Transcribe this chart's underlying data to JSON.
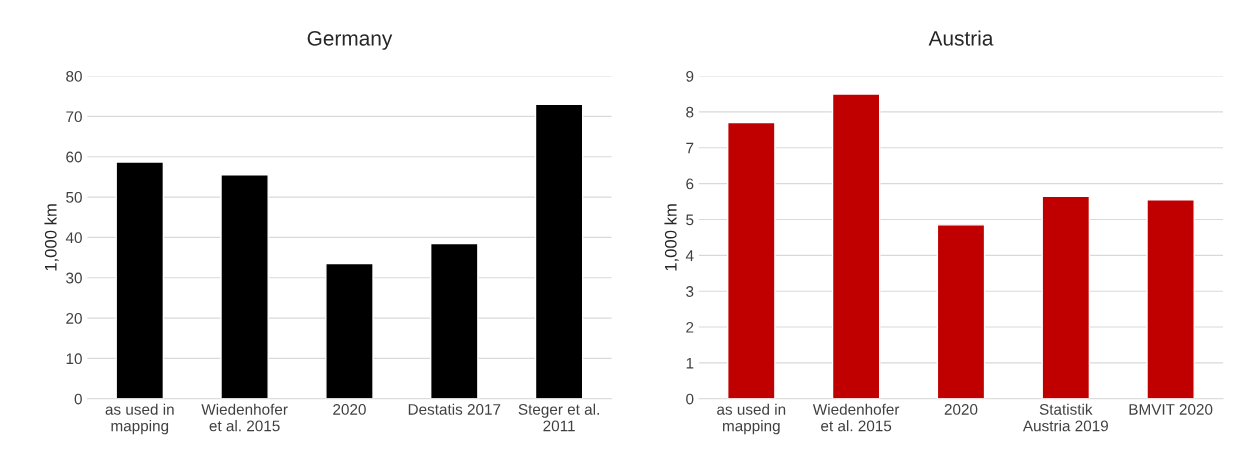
{
  "chart_data": [
    {
      "type": "bar",
      "title": "Germany",
      "ylabel": "1,000 km",
      "categories": [
        "as used in\nmapping",
        "Wiedenhofer\net al. 2015",
        "2020",
        "Destatis 2017",
        "Steger et al.\n2011"
      ],
      "values": [
        58.7,
        55.5,
        33.5,
        38.5,
        73
      ],
      "color": "#000000",
      "ylim": [
        0,
        80
      ],
      "yticks": [
        0,
        10,
        20,
        30,
        40,
        50,
        60,
        70,
        80
      ],
      "grid": "y"
    },
    {
      "type": "bar",
      "title": "Austria",
      "ylabel": "1,000 km",
      "categories": [
        "as used in\nmapping",
        "Wiedenhofer\net al. 2015",
        "2020",
        "Statistik\nAustria 2019",
        "BMVIT 2020"
      ],
      "values": [
        7.7,
        8.5,
        4.85,
        5.65,
        5.55
      ],
      "color": "#c00000",
      "ylim": [
        0,
        9
      ],
      "yticks": [
        0,
        1,
        2,
        3,
        4,
        5,
        6,
        7,
        8,
        9
      ],
      "grid": "y"
    }
  ]
}
